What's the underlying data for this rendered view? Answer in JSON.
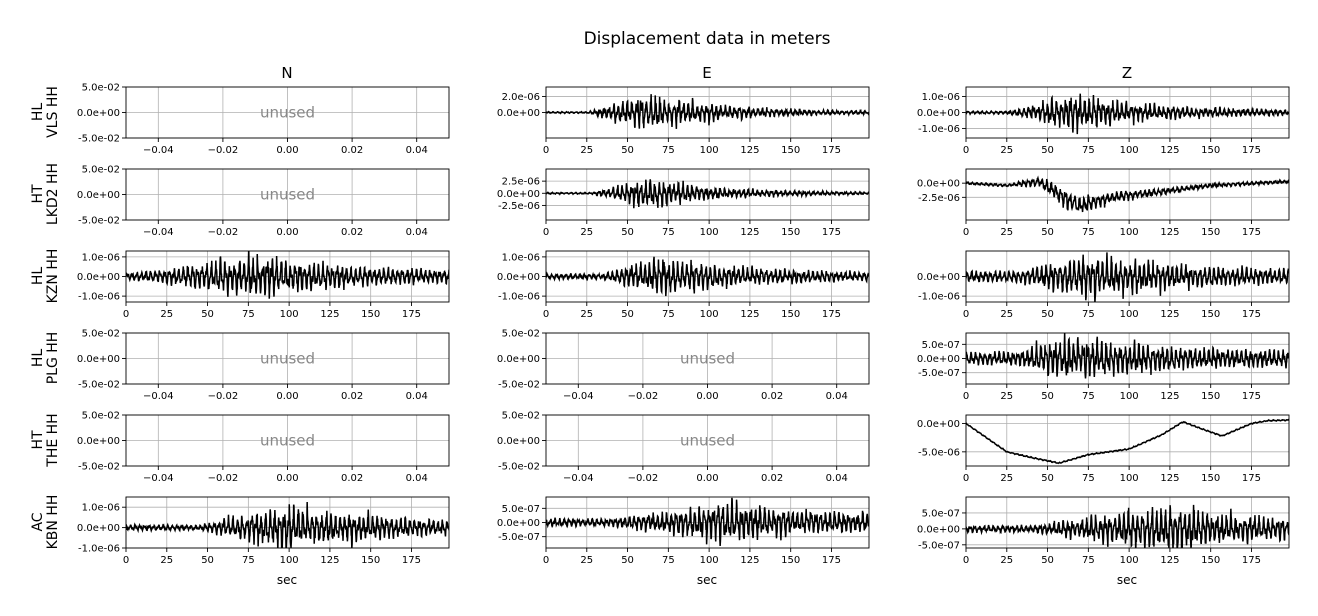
{
  "figure": {
    "title": "Displacement data in meters",
    "column_titles": [
      "N",
      "E",
      "Z"
    ],
    "xlabel": "sec",
    "unused_label": "unused",
    "row_labels": [
      [
        "HL",
        "VLS HH"
      ],
      [
        "HT",
        "LKD2 HH"
      ],
      [
        "HL",
        "KZN HH"
      ],
      [
        "HL",
        "PLG HH"
      ],
      [
        "HT",
        "THE HH"
      ],
      [
        "AC",
        "KBN HH"
      ]
    ]
  },
  "chart_data": [
    {
      "type": "line",
      "row": 0,
      "col": 0,
      "station": "HL VLS HH",
      "component": "N",
      "unused": true,
      "xlim": [
        -0.05,
        0.05
      ],
      "ylim": [
        -0.05,
        0.05
      ],
      "xticks": [
        -0.04,
        -0.02,
        0.0,
        0.02,
        0.04
      ],
      "xticklabels": [
        "−0.04",
        "−0.02",
        "0.00",
        "0.02",
        "0.04"
      ],
      "yticks": [
        0.05,
        0,
        -0.05
      ],
      "yticklabels": [
        "5.0e-02",
        "0.0e+00",
        "-5.0e-02"
      ],
      "grid": true
    },
    {
      "type": "line",
      "row": 0,
      "col": 1,
      "station": "HL VLS HH",
      "component": "E",
      "unused": false,
      "xlim": [
        0,
        198
      ],
      "ylim": [
        -3.2e-06,
        3.2e-06
      ],
      "xticks": [
        0,
        25,
        50,
        75,
        100,
        125,
        150,
        175
      ],
      "xticklabels": [
        "0",
        "25",
        "50",
        "75",
        "100",
        "125",
        "150",
        "175"
      ],
      "yticks": [
        2e-06,
        0
      ],
      "yticklabels": [
        "2.0e-06",
        "0.0e+00"
      ],
      "grid": true,
      "x_start": 0,
      "x_end": 198,
      "envelope": {
        "onset": 26,
        "peak_time": 62,
        "peak": 3.2e-06,
        "decay": 45,
        "noise": 1.2e-07
      },
      "drift": []
    },
    {
      "type": "line",
      "row": 0,
      "col": 2,
      "station": "HL VLS HH",
      "component": "Z",
      "unused": false,
      "xlim": [
        0,
        198
      ],
      "ylim": [
        -1.6e-06,
        1.6e-06
      ],
      "xticks": [
        0,
        25,
        50,
        75,
        100,
        125,
        150,
        175
      ],
      "xticklabels": [
        "0",
        "25",
        "50",
        "75",
        "100",
        "125",
        "150",
        "175"
      ],
      "yticks": [
        1e-06,
        0,
        -1e-06
      ],
      "yticklabels": [
        "1.0e-06",
        "0.0e+00",
        "-1.0e-06"
      ],
      "grid": true,
      "x_start": 0,
      "x_end": 198,
      "envelope": {
        "onset": 26,
        "peak_time": 65,
        "peak": 1.5e-06,
        "decay": 55,
        "noise": 1e-07
      },
      "drift": []
    },
    {
      "type": "line",
      "row": 1,
      "col": 0,
      "station": "HT LKD2 HH",
      "component": "N",
      "unused": true,
      "xlim": [
        -0.05,
        0.05
      ],
      "ylim": [
        -0.05,
        0.05
      ],
      "xticks": [
        -0.04,
        -0.02,
        0.0,
        0.02,
        0.04
      ],
      "xticklabels": [
        "−0.04",
        "−0.02",
        "0.00",
        "0.02",
        "0.04"
      ],
      "yticks": [
        0.05,
        0,
        -0.05
      ],
      "yticklabels": [
        "5.0e-02",
        "0.0e+00",
        "-5.0e-02"
      ],
      "grid": true
    },
    {
      "type": "line",
      "row": 1,
      "col": 1,
      "station": "HT LKD2 HH",
      "component": "E",
      "unused": false,
      "xlim": [
        0,
        198
      ],
      "ylim": [
        -5.5e-06,
        5e-06
      ],
      "xticks": [
        0,
        25,
        50,
        75,
        100,
        125,
        150,
        175
      ],
      "xticklabels": [
        "0",
        "25",
        "50",
        "75",
        "100",
        "125",
        "150",
        "175"
      ],
      "yticks": [
        2.5e-06,
        0,
        -2.5e-06
      ],
      "yticklabels": [
        "2.5e-06",
        "0.0e+00",
        "-2.5e-06"
      ],
      "grid": true,
      "x_start": 0,
      "x_end": 198,
      "envelope": {
        "onset": 28,
        "peak_time": 63,
        "peak": 4.5e-06,
        "decay": 40,
        "noise": 2e-07
      },
      "drift": []
    },
    {
      "type": "line",
      "row": 1,
      "col": 2,
      "station": "HT LKD2 HH",
      "component": "Z",
      "unused": false,
      "xlim": [
        0,
        198
      ],
      "ylim": [
        -6.5e-06,
        2.5e-06
      ],
      "xticks": [
        0,
        25,
        50,
        75,
        100,
        125,
        150,
        175
      ],
      "xticklabels": [
        "0",
        "25",
        "50",
        "75",
        "100",
        "125",
        "150",
        "175"
      ],
      "yticks": [
        0,
        -2.5e-06
      ],
      "yticklabels": [
        "0.0e+00",
        "-2.5e-06"
      ],
      "grid": true,
      "x_start": 0,
      "x_end": 198,
      "envelope": {
        "onset": 28,
        "peak_time": 63,
        "peak": 2.2e-06,
        "decay": 40,
        "noise": 2.5e-07
      },
      "drift": [
        [
          0,
          0
        ],
        [
          25,
          -4e-07
        ],
        [
          45,
          3e-07
        ],
        [
          60,
          -2.5e-06
        ],
        [
          70,
          -4e-06
        ],
        [
          90,
          -2.5e-06
        ],
        [
          120,
          -1.5e-06
        ],
        [
          150,
          -4e-07
        ],
        [
          198,
          3e-07
        ]
      ]
    },
    {
      "type": "line",
      "row": 2,
      "col": 0,
      "station": "HL KZN HH",
      "component": "N",
      "unused": false,
      "xlim": [
        0,
        198
      ],
      "ylim": [
        -1.3e-06,
        1.3e-06
      ],
      "xticks": [
        0,
        25,
        50,
        75,
        100,
        125,
        150,
        175
      ],
      "xticklabels": [
        "0",
        "25",
        "50",
        "75",
        "100",
        "125",
        "150",
        "175"
      ],
      "yticks": [
        1e-06,
        0,
        -1e-06
      ],
      "yticklabels": [
        "1.0e-06",
        "0.0e+00",
        "-1.0e-06"
      ],
      "grid": true,
      "x_start": 0,
      "x_end": 198,
      "envelope": {
        "onset": 10,
        "peak_time": 80,
        "peak": 1.2e-06,
        "decay": 60,
        "noise": 2.5e-07
      },
      "drift": []
    },
    {
      "type": "line",
      "row": 2,
      "col": 1,
      "station": "HL KZN HH",
      "component": "E",
      "unused": false,
      "xlim": [
        0,
        198
      ],
      "ylim": [
        -1.3e-06,
        1.3e-06
      ],
      "xticks": [
        0,
        25,
        50,
        75,
        100,
        125,
        150,
        175
      ],
      "xticklabels": [
        "0",
        "25",
        "50",
        "75",
        "100",
        "125",
        "150",
        "175"
      ],
      "yticks": [
        1e-06,
        0,
        -1e-06
      ],
      "yticklabels": [
        "1.0e-06",
        "0.0e+00",
        "-1.0e-06"
      ],
      "grid": true,
      "x_start": 0,
      "x_end": 198,
      "envelope": {
        "onset": 35,
        "peak_time": 72,
        "peak": 1.3e-06,
        "decay": 55,
        "noise": 1.5e-07
      },
      "drift": []
    },
    {
      "type": "line",
      "row": 2,
      "col": 2,
      "station": "HL KZN HH",
      "component": "Z",
      "unused": false,
      "xlim": [
        0,
        198
      ],
      "ylim": [
        -1.3e-06,
        1.3e-06
      ],
      "xticks": [
        0,
        25,
        50,
        75,
        100,
        125,
        150,
        175
      ],
      "xticklabels": [
        "0",
        "25",
        "50",
        "75",
        "100",
        "125",
        "150",
        "175"
      ],
      "yticks": [
        0,
        -1e-06
      ],
      "yticklabels": [
        "0.0e+00",
        "-1.0e-06"
      ],
      "grid": true,
      "x_start": 0,
      "x_end": 198,
      "envelope": {
        "onset": 30,
        "peak_time": 75,
        "peak": 1.3e-06,
        "decay": 60,
        "noise": 3e-07
      },
      "drift": []
    },
    {
      "type": "line",
      "row": 3,
      "col": 0,
      "station": "HL PLG HH",
      "component": "N",
      "unused": true,
      "xlim": [
        -0.05,
        0.05
      ],
      "ylim": [
        -0.05,
        0.05
      ],
      "xticks": [
        -0.04,
        -0.02,
        0.0,
        0.02,
        0.04
      ],
      "xticklabels": [
        "−0.04",
        "−0.02",
        "0.00",
        "0.02",
        "0.04"
      ],
      "yticks": [
        0.05,
        0,
        -0.05
      ],
      "yticklabels": [
        "5.0e-02",
        "0.0e+00",
        "-5.0e-02"
      ],
      "grid": true
    },
    {
      "type": "line",
      "row": 3,
      "col": 1,
      "station": "HL PLG HH",
      "component": "E",
      "unused": true,
      "xlim": [
        -0.05,
        0.05
      ],
      "ylim": [
        -0.05,
        0.05
      ],
      "xticks": [
        -0.04,
        -0.02,
        0.0,
        0.02,
        0.04
      ],
      "xticklabels": [
        "−0.04",
        "−0.02",
        "0.00",
        "0.02",
        "0.04"
      ],
      "yticks": [
        0.05,
        0,
        -0.05
      ],
      "yticklabels": [
        "5.0e-02",
        "0.0e+00",
        "-5.0e-02"
      ],
      "grid": true
    },
    {
      "type": "line",
      "row": 3,
      "col": 2,
      "station": "HL PLG HH",
      "component": "Z",
      "unused": false,
      "xlim": [
        0,
        198
      ],
      "ylim": [
        -9e-07,
        9e-07
      ],
      "xticks": [
        0,
        25,
        50,
        75,
        100,
        125,
        150,
        175
      ],
      "xticklabels": [
        "0",
        "25",
        "50",
        "75",
        "100",
        "125",
        "150",
        "175"
      ],
      "yticks": [
        5e-07,
        0,
        -5e-07
      ],
      "yticklabels": [
        "5.0e-07",
        "0.0e+00",
        "-5.0e-07"
      ],
      "grid": true,
      "x_start": 0,
      "x_end": 198,
      "envelope": {
        "onset": 30,
        "peak_time": 60,
        "peak": 8e-07,
        "decay": 70,
        "noise": 2.5e-07
      },
      "drift": []
    },
    {
      "type": "line",
      "row": 4,
      "col": 0,
      "station": "HT THE HH",
      "component": "N",
      "unused": true,
      "xlim": [
        -0.05,
        0.05
      ],
      "ylim": [
        -0.05,
        0.05
      ],
      "xticks": [
        -0.04,
        -0.02,
        0.0,
        0.02,
        0.04
      ],
      "xticklabels": [
        "−0.04",
        "−0.02",
        "0.00",
        "0.02",
        "0.04"
      ],
      "yticks": [
        0.05,
        0,
        -0.05
      ],
      "yticklabels": [
        "5.0e-02",
        "0.0e+00",
        "-5.0e-02"
      ],
      "grid": true
    },
    {
      "type": "line",
      "row": 4,
      "col": 1,
      "station": "HT THE HH",
      "component": "E",
      "unused": true,
      "xlim": [
        -0.05,
        0.05
      ],
      "ylim": [
        -0.05,
        0.05
      ],
      "xticks": [
        -0.04,
        -0.02,
        0.0,
        0.02,
        0.04
      ],
      "xticklabels": [
        "−0.04",
        "−0.02",
        "0.00",
        "0.02",
        "0.04"
      ],
      "yticks": [
        0.05,
        0,
        -0.05
      ],
      "yticklabels": [
        "5.0e-02",
        "0.0e+00",
        "-5.0e-02"
      ],
      "grid": true
    },
    {
      "type": "line",
      "row": 4,
      "col": 2,
      "station": "HT THE HH",
      "component": "Z",
      "unused": false,
      "xlim": [
        0,
        198
      ],
      "ylim": [
        -7.5e-06,
        1.5e-06
      ],
      "xticks": [
        0,
        25,
        50,
        75,
        100,
        125,
        150,
        175
      ],
      "xticklabels": [
        "0",
        "25",
        "50",
        "75",
        "100",
        "125",
        "150",
        "175"
      ],
      "yticks": [
        0,
        -5e-06
      ],
      "yticklabels": [
        "0.0e+00",
        "-5.0e-06"
      ],
      "grid": true,
      "x_start": 0,
      "x_end": 198,
      "envelope": {
        "onset": 0,
        "peak_time": 0,
        "peak": 0,
        "decay": 1,
        "noise": 1.2e-07
      },
      "drift": [
        [
          0,
          0
        ],
        [
          10,
          -2e-06
        ],
        [
          25,
          -5e-06
        ],
        [
          40,
          -6e-06
        ],
        [
          57,
          -7e-06
        ],
        [
          75,
          -5.5e-06
        ],
        [
          100,
          -4.5e-06
        ],
        [
          120,
          -2e-06
        ],
        [
          133,
          3e-07
        ],
        [
          145,
          -1e-06
        ],
        [
          157,
          -2.2e-06
        ],
        [
          175,
          0
        ],
        [
          185,
          5e-07
        ],
        [
          198,
          6e-07
        ]
      ]
    },
    {
      "type": "line",
      "row": 5,
      "col": 0,
      "station": "AC KBN HH",
      "component": "N",
      "unused": false,
      "xlim": [
        0,
        198
      ],
      "ylim": [
        -1e-06,
        1.5e-06
      ],
      "xticks": [
        0,
        25,
        50,
        75,
        100,
        125,
        150,
        175
      ],
      "xticklabels": [
        "0",
        "25",
        "50",
        "75",
        "100",
        "125",
        "150",
        "175"
      ],
      "yticks": [
        1e-06,
        0,
        -1e-06
      ],
      "yticklabels": [
        "1.0e-06",
        "0.0e+00",
        "-1.0e-06"
      ],
      "grid": true,
      "x_start": 0,
      "x_end": 198,
      "envelope": {
        "onset": 45,
        "peak_time": 98,
        "peak": 1.4e-06,
        "decay": 70,
        "noise": 1.5e-07
      },
      "drift": []
    },
    {
      "type": "line",
      "row": 5,
      "col": 1,
      "station": "AC KBN HH",
      "component": "E",
      "unused": false,
      "xlim": [
        0,
        198
      ],
      "ylim": [
        -9e-07,
        9e-07
      ],
      "xticks": [
        0,
        25,
        50,
        75,
        100,
        125,
        150,
        175
      ],
      "xticklabels": [
        "0",
        "25",
        "50",
        "75",
        "100",
        "125",
        "150",
        "175"
      ],
      "yticks": [
        5e-07,
        0,
        -5e-07
      ],
      "yticklabels": [
        "5.0e-07",
        "0.0e+00",
        "-5.0e-07"
      ],
      "grid": true,
      "x_start": 0,
      "x_end": 198,
      "envelope": {
        "onset": 40,
        "peak_time": 115,
        "peak": 8.5e-07,
        "decay": 70,
        "noise": 1.5e-07
      },
      "drift": []
    },
    {
      "type": "line",
      "row": 5,
      "col": 2,
      "station": "AC KBN HH",
      "component": "Z",
      "unused": false,
      "xlim": [
        0,
        198
      ],
      "ylim": [
        -6e-07,
        1e-06
      ],
      "xticks": [
        0,
        25,
        50,
        75,
        100,
        125,
        150,
        175
      ],
      "xticklabels": [
        "0",
        "25",
        "50",
        "75",
        "100",
        "125",
        "150",
        "175"
      ],
      "yticks": [
        5e-07,
        0,
        -5e-07
      ],
      "yticklabels": [
        "5.0e-07",
        "0.0e+00",
        "-5.0e-07"
      ],
      "grid": true,
      "x_start": 0,
      "x_end": 198,
      "envelope": {
        "onset": 40,
        "peak_time": 125,
        "peak": 9e-07,
        "decay": 70,
        "noise": 1.2e-07
      },
      "drift": []
    }
  ]
}
